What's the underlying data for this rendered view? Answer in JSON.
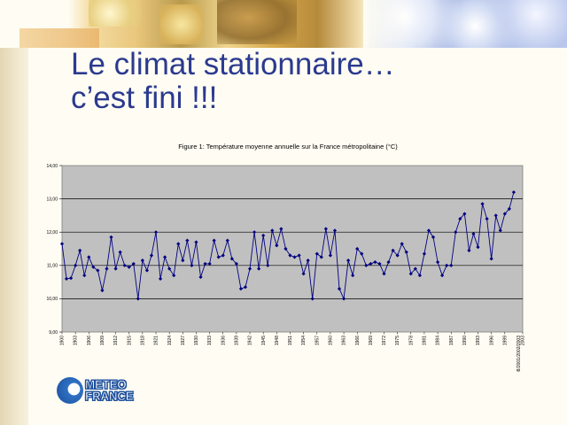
{
  "slide": {
    "title_line1": "Le climat stationnaire…",
    "title_line2": "c’est fini !!!",
    "logo_line1": "METEO",
    "logo_line2": "FRANCE"
  },
  "colors": {
    "title": "#2b3a8f",
    "series": "#000080",
    "plot_bg": "#c0c0c0"
  },
  "chart_data": {
    "type": "line",
    "title": "Figure 1: Température moyenne annuelle sur la France métropolitaine (°C)",
    "xlabel": "",
    "ylabel": "",
    "ylim": [
      9,
      14
    ],
    "yticks": [
      "14,00",
      "13,00",
      "12,00",
      "11,00",
      "10,00",
      "9,00"
    ],
    "grid": true,
    "x_start": 1900,
    "x_end": 2003,
    "xtick_labels": [
      "1900",
      "1903",
      "1906",
      "1909",
      "1912",
      "1915",
      "1918",
      "1921",
      "1924",
      "1927",
      "1930",
      "1933",
      "1936",
      "1939",
      "1942",
      "1945",
      "1948",
      "1951",
      "1954",
      "1957",
      "1960",
      "1963",
      "1966",
      "1969",
      "1972",
      "1975",
      "1978",
      "1981",
      "1984",
      "1987",
      "1990",
      "1993",
      "1996",
      "1999",
      "2003"
    ],
    "last_tick_garbled": "1998/2001/2002/2003",
    "series": [
      {
        "name": "",
        "values": [
          11.65,
          10.6,
          10.62,
          11.0,
          11.45,
          10.7,
          11.25,
          10.95,
          10.85,
          10.25,
          10.9,
          11.85,
          10.9,
          11.4,
          11.0,
          10.95,
          11.05,
          10.0,
          11.15,
          10.85,
          11.3,
          12.0,
          10.6,
          11.25,
          10.9,
          10.7,
          11.65,
          11.15,
          11.75,
          11.0,
          11.7,
          10.65,
          11.05,
          11.05,
          11.75,
          11.25,
          11.3,
          11.75,
          11.2,
          11.05,
          10.3,
          10.35,
          10.9,
          12.0,
          10.9,
          11.9,
          11.0,
          12.05,
          11.6,
          12.1,
          11.5,
          11.3,
          11.25,
          11.3,
          10.75,
          11.15,
          10.0,
          11.35,
          11.25,
          12.1,
          11.3,
          12.05,
          10.3,
          10.0,
          11.15,
          10.7,
          11.5,
          11.35,
          11.0,
          11.05,
          11.1,
          11.05,
          10.75,
          11.1,
          11.45,
          11.3,
          11.65,
          11.4,
          10.75,
          10.9,
          10.7,
          11.35,
          12.05,
          11.85,
          11.1,
          10.7,
          11.0,
          11.0,
          12.0,
          12.4,
          12.55,
          11.45,
          11.95,
          11.55,
          12.85,
          12.4,
          11.2,
          12.5,
          12.05,
          12.55,
          12.7,
          13.2
        ]
      }
    ]
  }
}
